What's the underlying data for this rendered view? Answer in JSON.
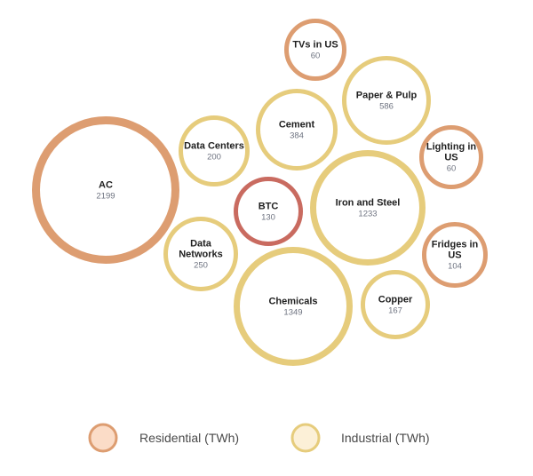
{
  "colors": {
    "residential_stroke": "#dd9d71",
    "residential_fill": "#fbdcc7",
    "industrial_stroke": "#e6cc7c",
    "industrial_fill": "#fcf0d7",
    "btc_stroke": "#c96b60",
    "inner_fill": "#ffffff"
  },
  "chart_data": {
    "type": "bubble",
    "unit": "TWh",
    "legend": [
      {
        "category": "residential",
        "label": "Residential (TWh)"
      },
      {
        "category": "industrial",
        "label": "Industrial (TWh)"
      }
    ],
    "items": [
      {
        "name": "AC",
        "value": 2199,
        "category": "residential"
      },
      {
        "name": "Chemicals",
        "value": 1349,
        "category": "industrial"
      },
      {
        "name": "Iron and Steel",
        "value": 1233,
        "category": "industrial"
      },
      {
        "name": "Paper & Pulp",
        "value": 586,
        "category": "industrial"
      },
      {
        "name": "Cement",
        "value": 384,
        "category": "industrial"
      },
      {
        "name": "Data Networks",
        "value": 250,
        "category": "industrial"
      },
      {
        "name": "Data Centers",
        "value": 200,
        "category": "industrial"
      },
      {
        "name": "Copper",
        "value": 167,
        "category": "industrial"
      },
      {
        "name": "BTC",
        "value": 130,
        "category": "btc"
      },
      {
        "name": "Fridges in US",
        "value": 104,
        "category": "residential"
      },
      {
        "name": "Lighting in US",
        "value": 60,
        "category": "residential"
      },
      {
        "name": "TVs in US",
        "value": 60,
        "category": "residential"
      }
    ]
  }
}
